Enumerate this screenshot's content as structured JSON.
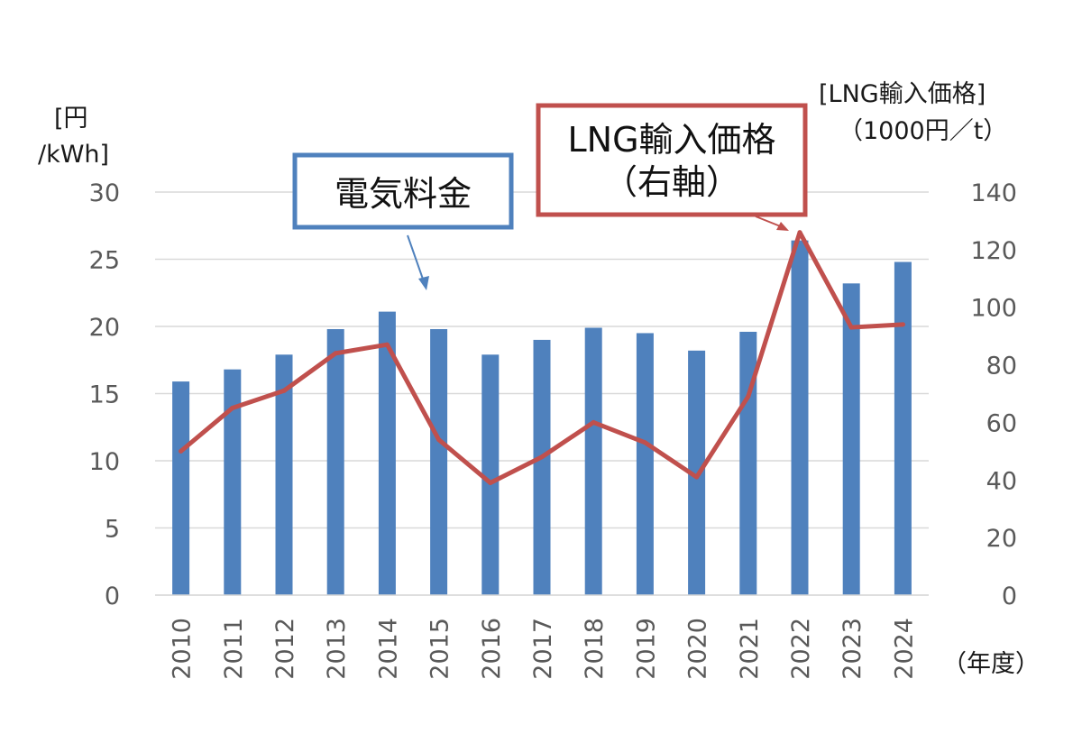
{
  "chart_data": {
    "type": "bar+line",
    "categories": [
      "2010",
      "2011",
      "2012",
      "2013",
      "2014",
      "2015",
      "2016",
      "2017",
      "2018",
      "2019",
      "2020",
      "2021",
      "2022",
      "2023",
      "2024"
    ],
    "series": [
      {
        "name": "電気料金",
        "type": "bar",
        "axis": "left",
        "color": "#4f81bd",
        "values": [
          15.9,
          16.8,
          17.9,
          19.8,
          21.1,
          19.8,
          17.9,
          19.0,
          19.9,
          19.5,
          18.2,
          19.6,
          26.4,
          23.2,
          24.8
        ]
      },
      {
        "name": "LNG輸入価格（右軸）",
        "type": "line",
        "axis": "right",
        "color": "#c0504d",
        "values": [
          50,
          65,
          71,
          84,
          87,
          54,
          39,
          48,
          60,
          53,
          41,
          69,
          126,
          93,
          94
        ]
      }
    ],
    "left_axis": {
      "label_line1": "[円",
      "label_line2": "/kWh]",
      "ylim": [
        0,
        30
      ],
      "ticks": [
        "0",
        "5",
        "10",
        "15",
        "20",
        "25",
        "30"
      ]
    },
    "right_axis": {
      "label_line1": "[LNG輸入価格]",
      "label_line2": "（1000円／t）",
      "ylim": [
        0,
        140
      ],
      "ticks": [
        "0",
        "20",
        "40",
        "60",
        "80",
        "100",
        "120",
        "140"
      ]
    },
    "x_axis": {
      "unit_label": "（年度）"
    },
    "callouts": {
      "bar_label": "電気料金",
      "line_label_1": "LNG輸入価格",
      "line_label_2": "（右軸）"
    },
    "grid": true
  }
}
